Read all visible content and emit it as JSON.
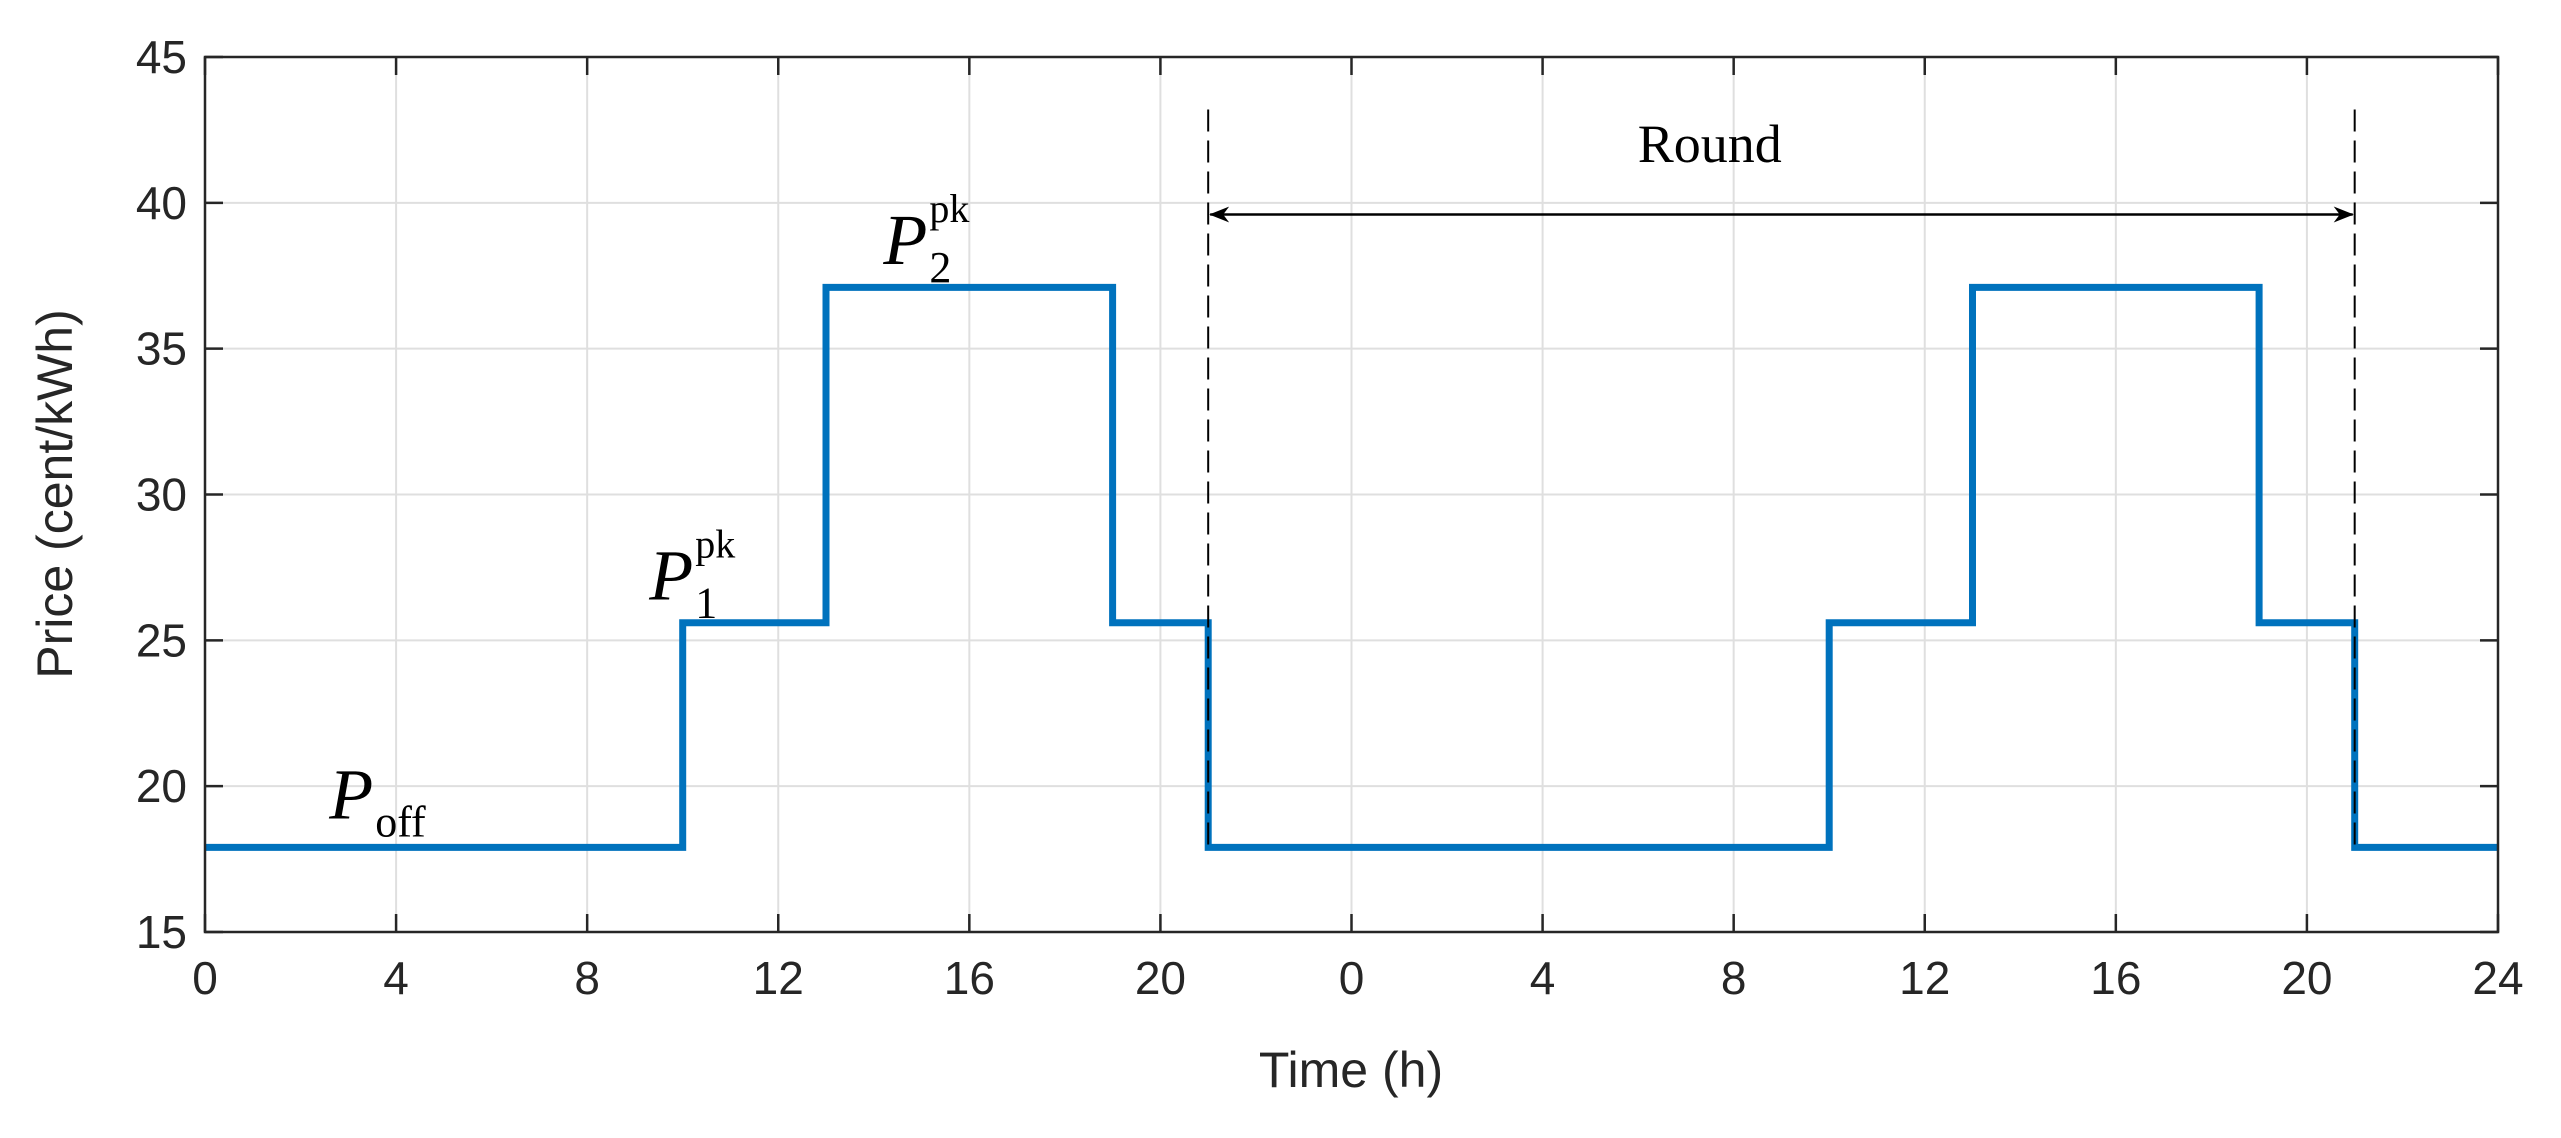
{
  "chart_data": {
    "type": "line",
    "step": true,
    "xlabel": "Time (h)",
    "ylabel": "Price (cent/kWh)",
    "ylim": [
      15,
      45
    ],
    "y_ticks": [
      15,
      20,
      25,
      30,
      35,
      40,
      45
    ],
    "xlim_elapsed_hours": [
      0,
      48
    ],
    "x_ticks": [
      {
        "h": 0,
        "label": "0"
      },
      {
        "h": 4,
        "label": "4"
      },
      {
        "h": 8,
        "label": "8"
      },
      {
        "h": 12,
        "label": "12"
      },
      {
        "h": 16,
        "label": "16"
      },
      {
        "h": 20,
        "label": "20"
      },
      {
        "h": 24,
        "label": "0"
      },
      {
        "h": 28,
        "label": "4"
      },
      {
        "h": 32,
        "label": "8"
      },
      {
        "h": 36,
        "label": "12"
      },
      {
        "h": 40,
        "label": "16"
      },
      {
        "h": 44,
        "label": "20"
      },
      {
        "h": 48,
        "label": "24"
      }
    ],
    "grid": true,
    "series": [
      {
        "color": "#0072BD",
        "points": [
          [
            0,
            17.9
          ],
          [
            10,
            17.9
          ],
          [
            10,
            25.6
          ],
          [
            13,
            25.6
          ],
          [
            13,
            37.1
          ],
          [
            19,
            37.1
          ],
          [
            19,
            25.6
          ],
          [
            21,
            25.6
          ],
          [
            21,
            17.9
          ],
          [
            34,
            17.9
          ],
          [
            34,
            25.6
          ],
          [
            37,
            25.6
          ],
          [
            37,
            37.1
          ],
          [
            43,
            37.1
          ],
          [
            43,
            25.6
          ],
          [
            45,
            25.6
          ],
          [
            45,
            17.9
          ],
          [
            48,
            17.9
          ]
        ]
      }
    ],
    "annotations": [
      {
        "kind": "dashed-vline",
        "x": 21,
        "y_top": 43.2
      },
      {
        "kind": "dashed-vline",
        "x": 45,
        "y_top": 43.2
      },
      {
        "kind": "double-arrow",
        "x1": 21,
        "x2": 45,
        "y": 39.6
      },
      {
        "kind": "text",
        "text": "Round",
        "x": 31.5,
        "y": 41.4
      },
      {
        "kind": "price-label",
        "main": "P",
        "sub": "off",
        "sup": "",
        "x": 2.6,
        "y": 18.9
      },
      {
        "kind": "price-label",
        "main": "P",
        "sub": "1",
        "sup": "pk",
        "x": 9.3,
        "y": 26.4
      },
      {
        "kind": "price-label",
        "main": "P",
        "sub": "2",
        "sup": "pk",
        "x": 14.2,
        "y": 37.9
      }
    ]
  }
}
